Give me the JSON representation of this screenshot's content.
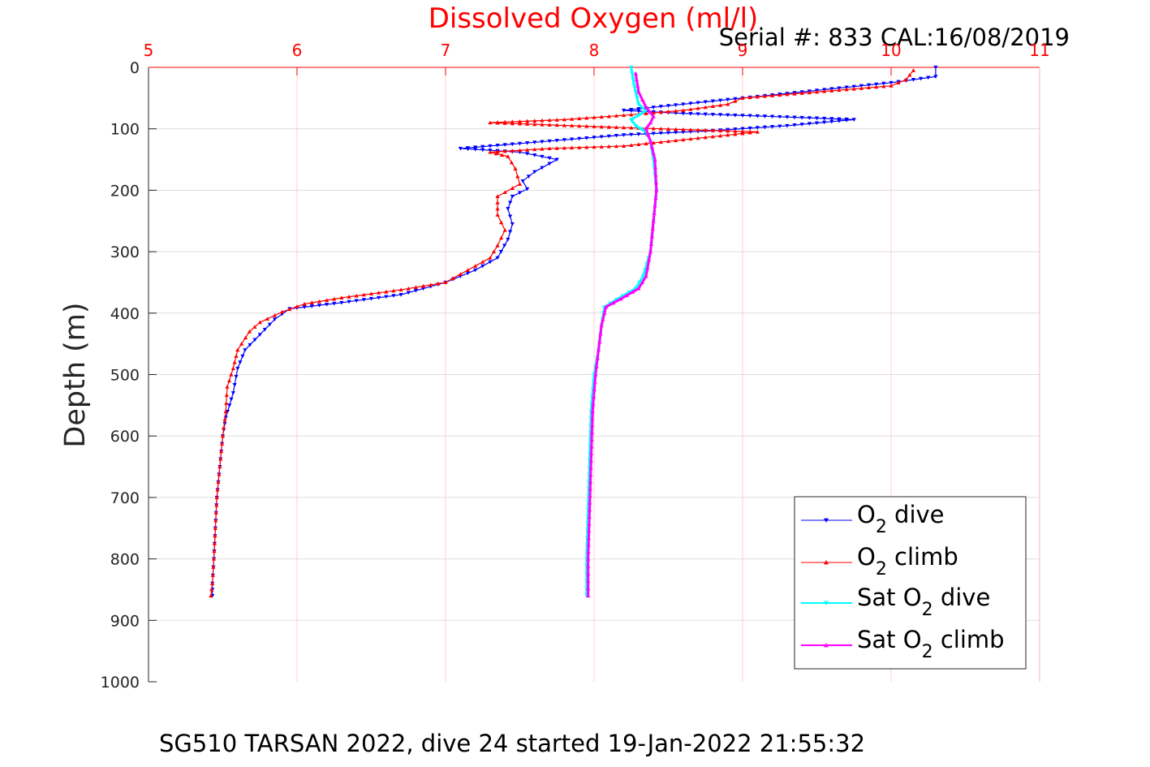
{
  "chart_data": {
    "type": "scatter",
    "title": "Dissolved Oxygen (ml/l)",
    "subtitle": "Serial #: 833  CAL:16/08/2019",
    "caption": "SG510 TARSAN 2022, dive 24 started 19-Jan-2022 21:55:32",
    "ylabel": "Depth (m)",
    "xlabel": "",
    "xlim": [
      5,
      11
    ],
    "ylim": [
      0,
      1000
    ],
    "y_reversed": true,
    "x_axis_position": "top",
    "grid": true,
    "legend_position": "bottom-right",
    "x_ticks": [
      "5",
      "6",
      "7",
      "8",
      "9",
      "10",
      "11"
    ],
    "y_ticks": [
      "0",
      "100",
      "200",
      "300",
      "400",
      "500",
      "600",
      "700",
      "800",
      "900",
      "1000"
    ],
    "series": [
      {
        "name": "O2 dive",
        "legend_main": "O",
        "legend_sub": "2",
        "legend_rest": " dive",
        "color": "#0000ff",
        "marker": "triangle-down",
        "points": [
          [
            10.3,
            0
          ],
          [
            10.3,
            15
          ],
          [
            10.0,
            25
          ],
          [
            9.6,
            35
          ],
          [
            9.2,
            45
          ],
          [
            8.8,
            55
          ],
          [
            8.4,
            65
          ],
          [
            8.2,
            70
          ],
          [
            8.6,
            75
          ],
          [
            9.2,
            80
          ],
          [
            9.75,
            85
          ],
          [
            9.3,
            95
          ],
          [
            8.8,
            103
          ],
          [
            8.2,
            110
          ],
          [
            7.8,
            118
          ],
          [
            7.4,
            126
          ],
          [
            7.1,
            132
          ],
          [
            7.5,
            138
          ],
          [
            7.75,
            150
          ],
          [
            7.6,
            170
          ],
          [
            7.52,
            185
          ],
          [
            7.55,
            198
          ],
          [
            7.45,
            210
          ],
          [
            7.42,
            230
          ],
          [
            7.45,
            255
          ],
          [
            7.42,
            280
          ],
          [
            7.35,
            310
          ],
          [
            7.2,
            330
          ],
          [
            7.0,
            350
          ],
          [
            6.7,
            370
          ],
          [
            6.3,
            383
          ],
          [
            5.95,
            393
          ],
          [
            5.85,
            410
          ],
          [
            5.75,
            435
          ],
          [
            5.65,
            460
          ],
          [
            5.6,
            490
          ],
          [
            5.57,
            530
          ],
          [
            5.52,
            570
          ],
          [
            5.5,
            600
          ],
          [
            5.48,
            650
          ],
          [
            5.46,
            700
          ],
          [
            5.45,
            750
          ],
          [
            5.44,
            800
          ],
          [
            5.43,
            840
          ],
          [
            5.43,
            860
          ]
        ]
      },
      {
        "name": "O2 climb",
        "legend_main": "O",
        "legend_sub": "2",
        "legend_rest": " climb",
        "color": "#ff0000",
        "marker": "triangle-up",
        "points": [
          [
            5.42,
            860
          ],
          [
            5.43,
            840
          ],
          [
            5.44,
            800
          ],
          [
            5.45,
            750
          ],
          [
            5.46,
            700
          ],
          [
            5.48,
            650
          ],
          [
            5.5,
            600
          ],
          [
            5.52,
            560
          ],
          [
            5.53,
            520
          ],
          [
            5.57,
            490
          ],
          [
            5.6,
            460
          ],
          [
            5.68,
            430
          ],
          [
            5.75,
            415
          ],
          [
            5.9,
            398
          ],
          [
            6.05,
            385
          ],
          [
            6.3,
            375
          ],
          [
            6.7,
            362
          ],
          [
            7.0,
            350
          ],
          [
            7.15,
            330
          ],
          [
            7.3,
            310
          ],
          [
            7.35,
            290
          ],
          [
            7.4,
            265
          ],
          [
            7.35,
            240
          ],
          [
            7.35,
            210
          ],
          [
            7.5,
            190
          ],
          [
            7.47,
            165
          ],
          [
            7.42,
            145
          ],
          [
            7.3,
            138
          ],
          [
            7.7,
            132
          ],
          [
            8.2,
            128
          ],
          [
            9.1,
            105
          ],
          [
            8.2,
            98
          ],
          [
            7.3,
            90
          ],
          [
            7.8,
            85
          ],
          [
            8.2,
            78
          ],
          [
            8.6,
            70
          ],
          [
            8.9,
            60
          ],
          [
            9.0,
            50
          ],
          [
            9.5,
            40
          ],
          [
            10.0,
            30
          ],
          [
            10.1,
            20
          ],
          [
            10.15,
            5
          ]
        ]
      },
      {
        "name": "Sat O2 dive",
        "legend_main": "Sat O",
        "legend_sub": "2",
        "legend_rest": " dive",
        "color": "#00ffff",
        "marker": "triangle-down",
        "points": [
          [
            8.25,
            0
          ],
          [
            8.27,
            30
          ],
          [
            8.3,
            60
          ],
          [
            8.35,
            70
          ],
          [
            8.3,
            78
          ],
          [
            8.25,
            85
          ],
          [
            8.28,
            95
          ],
          [
            8.35,
            105
          ],
          [
            8.38,
            120
          ],
          [
            8.4,
            150
          ],
          [
            8.42,
            200
          ],
          [
            8.4,
            250
          ],
          [
            8.38,
            300
          ],
          [
            8.33,
            340
          ],
          [
            8.28,
            360
          ],
          [
            8.15,
            378
          ],
          [
            8.07,
            390
          ],
          [
            8.05,
            420
          ],
          [
            8.03,
            460
          ],
          [
            8.0,
            500
          ],
          [
            7.98,
            560
          ],
          [
            7.97,
            640
          ],
          [
            7.96,
            720
          ],
          [
            7.95,
            800
          ],
          [
            7.95,
            860
          ]
        ]
      },
      {
        "name": "Sat O2 climb",
        "legend_main": "Sat O",
        "legend_sub": "2",
        "legend_rest": " climb",
        "color": "#ff00ff",
        "marker": "triangle-up",
        "points": [
          [
            7.96,
            860
          ],
          [
            7.96,
            800
          ],
          [
            7.97,
            720
          ],
          [
            7.98,
            640
          ],
          [
            7.99,
            560
          ],
          [
            8.01,
            500
          ],
          [
            8.03,
            460
          ],
          [
            8.05,
            420
          ],
          [
            8.08,
            390
          ],
          [
            8.18,
            377
          ],
          [
            8.3,
            360
          ],
          [
            8.35,
            340
          ],
          [
            8.38,
            300
          ],
          [
            8.4,
            250
          ],
          [
            8.42,
            200
          ],
          [
            8.41,
            150
          ],
          [
            8.38,
            120
          ],
          [
            8.35,
            100
          ],
          [
            8.38,
            90
          ],
          [
            8.4,
            80
          ],
          [
            8.35,
            65
          ],
          [
            8.3,
            40
          ],
          [
            8.28,
            10
          ]
        ]
      }
    ]
  }
}
